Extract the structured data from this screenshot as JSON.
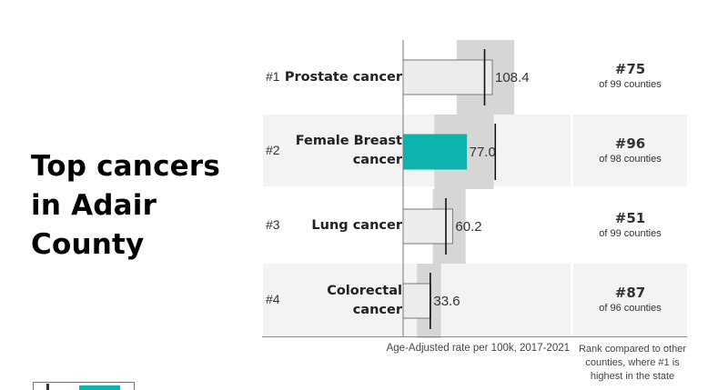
{
  "title": "Top cancers in Adair County",
  "colors": {
    "highlight_bar": "#0fb3ad",
    "bar": "#ececec",
    "bar_border": "#7a7a7a",
    "range_band": "#d6d6d6",
    "marker": "#111111",
    "row_band": "#f3f3f3"
  },
  "chart_data": {
    "type": "bar",
    "orientation": "horizontal",
    "categories": [
      "Prostate cancer",
      "Female Breast cancer",
      "Lung cancer",
      "Colorectal cancer"
    ],
    "values": [
      108.4,
      77.0,
      60.2,
      33.6
    ],
    "value_labels": [
      "108.4",
      "77.0",
      "60.2",
      "33.6"
    ],
    "comparison_marker": [
      99,
      112,
      52,
      33
    ],
    "comparison_range": [
      [
        65,
        135
      ],
      [
        38,
        110
      ],
      [
        36,
        76
      ],
      [
        17,
        46
      ]
    ],
    "highlighted_category": "Female Breast cancer",
    "xlabel": "Age-Adjusted rate per 100k, 2017-2021",
    "xlim": [
      0,
      135
    ],
    "grid": false,
    "legend": "none"
  },
  "rows": [
    {
      "rank": "#1",
      "label_lines": [
        "Prostate cancer"
      ],
      "state_rank": "#75",
      "state_rank_sub": "of 99 counties"
    },
    {
      "rank": "#2",
      "label_lines": [
        "Female Breast",
        "cancer"
      ],
      "state_rank": "#96",
      "state_rank_sub": "of 98 counties"
    },
    {
      "rank": "#3",
      "label_lines": [
        "Lung cancer"
      ],
      "state_rank": "#51",
      "state_rank_sub": "of 99 counties"
    },
    {
      "rank": "#4",
      "label_lines": [
        "Colorectal",
        "cancer"
      ],
      "state_rank": "#87",
      "state_rank_sub": "of 96 counties"
    }
  ],
  "footer": {
    "rate_caption": "Age-Adjusted rate per 100k, 2017-2021",
    "rank_caption_lines": [
      "Rank compared to other",
      "counties, where #1 is",
      "highest in the state"
    ]
  }
}
